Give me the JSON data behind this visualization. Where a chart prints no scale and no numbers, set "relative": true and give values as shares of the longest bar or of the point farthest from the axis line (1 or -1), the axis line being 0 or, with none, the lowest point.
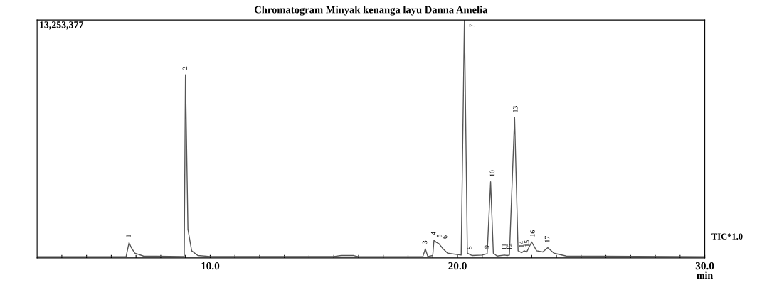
{
  "chart_data": {
    "type": "line",
    "title": "Chromatogram Minyak kenanga layu Danna Amelia",
    "xlabel": "min",
    "relative": true,
    "grid": false,
    "legend": false,
    "tick_labels": "x",
    "marker": "none",
    "line_style": "solid",
    "xlim": [
      3.0,
      30.0
    ],
    "xticks": [
      {
        "value": 4,
        "label": null
      },
      {
        "value": 5,
        "label": null
      },
      {
        "value": 6,
        "label": null
      },
      {
        "value": 7,
        "label": null
      },
      {
        "value": 8,
        "label": null
      },
      {
        "value": 9,
        "label": null
      },
      {
        "value": 10,
        "label": "10.0"
      },
      {
        "value": 11,
        "label": null
      },
      {
        "value": 12,
        "label": null
      },
      {
        "value": 13,
        "label": null
      },
      {
        "value": 14,
        "label": null
      },
      {
        "value": 15,
        "label": null
      },
      {
        "value": 16,
        "label": null
      },
      {
        "value": 17,
        "label": null
      },
      {
        "value": 18,
        "label": null
      },
      {
        "value": 19,
        "label": null
      },
      {
        "value": 20,
        "label": "20.0"
      },
      {
        "value": 21,
        "label": null
      },
      {
        "value": 22,
        "label": null
      },
      {
        "value": 23,
        "label": null
      },
      {
        "value": 24,
        "label": null
      },
      {
        "value": 25,
        "label": null
      },
      {
        "value": 26,
        "label": null
      },
      {
        "value": 27,
        "label": null
      },
      {
        "value": 28,
        "label": null
      },
      {
        "value": 29,
        "label": null
      },
      {
        "value": 30,
        "label": "30.0"
      }
    ],
    "series": [
      {
        "color": "#555555",
        "x": [
          3.0,
          6.0,
          6.6,
          6.72,
          6.8,
          6.95,
          7.3,
          8.95,
          9.0,
          9.1,
          9.25,
          9.5,
          10.0,
          15.0,
          15.3,
          15.8,
          16.0,
          18.6,
          18.7,
          18.8,
          19.0,
          19.05,
          19.15,
          19.25,
          19.4,
          19.6,
          20.15,
          20.28,
          20.4,
          20.5,
          20.6,
          21.0,
          21.2,
          21.34,
          21.45,
          21.6,
          21.9,
          22.0,
          22.1,
          22.31,
          22.45,
          22.6,
          22.7,
          22.8,
          23.0,
          23.2,
          23.45,
          23.65,
          23.9,
          24.4,
          30.0
        ],
        "values": [
          0.005,
          0.005,
          0.006,
          0.064,
          0.045,
          0.02,
          0.008,
          0.006,
          0.77,
          0.12,
          0.03,
          0.01,
          0.006,
          0.006,
          0.01,
          0.01,
          0.005,
          0.006,
          0.038,
          0.006,
          0.01,
          0.075,
          0.065,
          0.06,
          0.04,
          0.02,
          0.012,
          1.0,
          0.02,
          0.014,
          0.01,
          0.012,
          0.018,
          0.32,
          0.02,
          0.008,
          0.012,
          0.01,
          0.012,
          0.59,
          0.03,
          0.022,
          0.03,
          0.025,
          0.067,
          0.03,
          0.025,
          0.043,
          0.02,
          0.008,
          0.005
        ]
      }
    ],
    "annotations": [
      {
        "text": "1",
        "x": 6.72,
        "y": 0.064
      },
      {
        "text": "2",
        "x": 9.0,
        "y": 0.77
      },
      {
        "text": "3",
        "x": 18.7,
        "y": 0.038
      },
      {
        "text": "4",
        "x": 19.05,
        "y": 0.075
      },
      {
        "text": "5",
        "x": 19.15,
        "y": 0.065
      },
      {
        "text": "6",
        "x": 19.25,
        "y": 0.06
      },
      {
        "text": "7",
        "x": 20.28,
        "y": 1.0
      },
      {
        "text": "8",
        "x": 20.5,
        "y": 0.014
      },
      {
        "text": "9",
        "x": 21.2,
        "y": 0.018
      },
      {
        "text": "10",
        "x": 21.34,
        "y": 0.32
      },
      {
        "text": "11",
        "x": 21.9,
        "y": 0.012
      },
      {
        "text": "12",
        "x": 22.1,
        "y": 0.012
      },
      {
        "text": "13",
        "x": 22.31,
        "y": 0.59
      },
      {
        "text": "14",
        "x": 22.6,
        "y": 0.022
      },
      {
        "text": "15",
        "x": 22.8,
        "y": 0.025
      },
      {
        "text": "16",
        "x": 23.0,
        "y": 0.067
      },
      {
        "text": "17",
        "x": 23.65,
        "y": 0.043
      },
      "13,253,377",
      "TIC*1.0"
    ]
  }
}
